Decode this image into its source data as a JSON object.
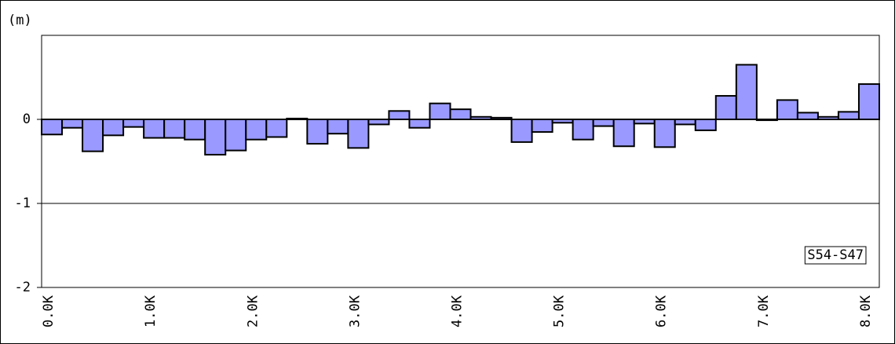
{
  "chart_data": {
    "type": "bar",
    "y_label": "(m)",
    "categories": [
      "0.0K",
      null,
      null,
      null,
      null,
      "1.0K",
      null,
      null,
      null,
      null,
      "2.0K",
      null,
      null,
      null,
      null,
      "3.0K",
      null,
      null,
      null,
      null,
      "4.0K",
      null,
      null,
      null,
      null,
      "5.0K",
      null,
      null,
      null,
      null,
      "6.0K",
      null,
      null,
      null,
      null,
      "7.0K",
      null,
      null,
      null,
      null,
      "8.0K"
    ],
    "series": [
      {
        "name": "S54-S47",
        "color": "#9999ff",
        "values": [
          -0.18,
          -0.1,
          -0.38,
          -0.19,
          -0.09,
          -0.22,
          -0.22,
          -0.24,
          -0.42,
          -0.37,
          -0.24,
          -0.21,
          0.01,
          -0.29,
          -0.17,
          -0.34,
          -0.06,
          0.1,
          -0.1,
          0.19,
          0.12,
          0.03,
          0.02,
          -0.27,
          -0.15,
          -0.04,
          -0.24,
          -0.08,
          -0.32,
          -0.05,
          -0.33,
          -0.06,
          -0.13,
          0.28,
          0.65,
          -0.01,
          0.23,
          0.08,
          0.03,
          0.09,
          0.42
        ]
      }
    ],
    "ylim": [
      -2,
      1
    ],
    "yticks": [
      -2,
      -1,
      0
    ],
    "grid": true,
    "legend": "lower right"
  }
}
